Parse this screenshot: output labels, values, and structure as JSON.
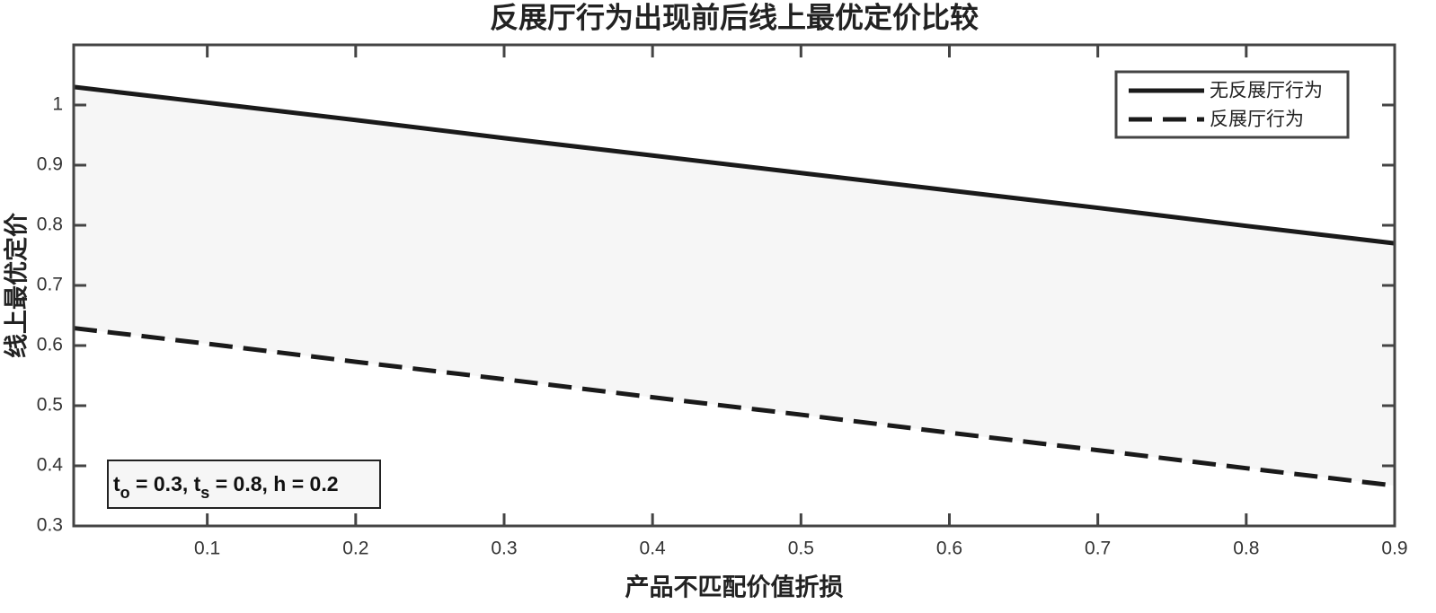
{
  "chart_data": {
    "type": "line",
    "title": "反展厅行为出现前后线上最优定价比较",
    "x_label": "产品不匹配价值折损",
    "y_label": "线上最优定价",
    "x": [
      0.01,
      0.1,
      0.2,
      0.3,
      0.4,
      0.5,
      0.6,
      0.7,
      0.8,
      0.9
    ],
    "series": [
      {
        "name": "无反展厅行为",
        "color": "#1a1a1a",
        "dash": false,
        "values": [
          1.03,
          1.004,
          0.975,
          0.945,
          0.916,
          0.887,
          0.858,
          0.829,
          0.799,
          0.77
        ]
      },
      {
        "name": "反展厅行为",
        "color": "#1a1a1a",
        "dash": true,
        "values": [
          0.629,
          0.603,
          0.573,
          0.544,
          0.514,
          0.485,
          0.455,
          0.426,
          0.396,
          0.367
        ]
      }
    ],
    "fill_between": true,
    "fill_color": "#f6f6f6",
    "xlim": [
      0.01,
      0.9
    ],
    "xticks": [
      0.1,
      0.2,
      0.3,
      0.4,
      0.5,
      0.6,
      0.7,
      0.8,
      0.9
    ],
    "ylim": [
      0.3,
      1.1
    ],
    "yticks": [
      0.3,
      0.4,
      0.5,
      0.6,
      0.7,
      0.8,
      0.9,
      1
    ],
    "legend": "northeast",
    "annotation": [
      {
        "text": "t"
      },
      {
        "sub": "o"
      },
      {
        "text": " = 0.3, t"
      },
      {
        "sub": "s"
      },
      {
        "text": " = 0.8, h = 0.2"
      }
    ]
  }
}
